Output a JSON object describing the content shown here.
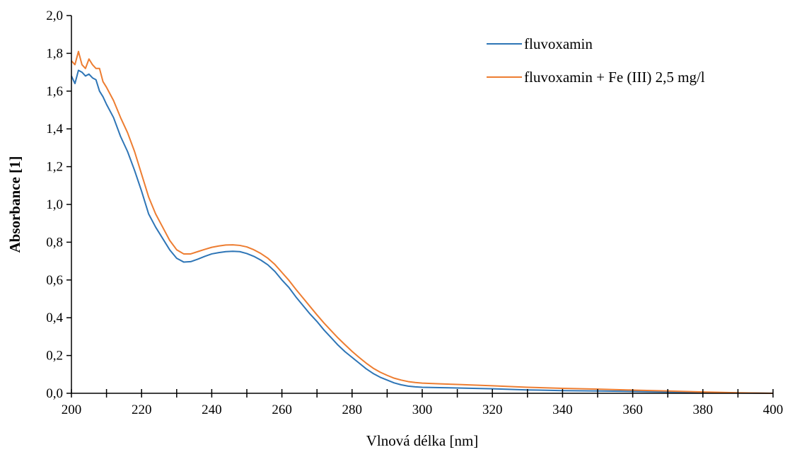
{
  "chart_data": {
    "type": "line",
    "title": "",
    "xlabel": "Vlnová délka [nm]",
    "ylabel": "Absorbance [1]",
    "xlim": [
      200,
      400
    ],
    "ylim": [
      0,
      2.0
    ],
    "x_ticks": [
      200,
      220,
      240,
      260,
      280,
      300,
      320,
      340,
      360,
      380,
      400
    ],
    "x_tick_labels": [
      "200",
      "220",
      "240",
      "260",
      "280",
      "300",
      "320",
      "340",
      "360",
      "380",
      "400"
    ],
    "y_ticks": [
      0,
      0.2,
      0.4,
      0.6,
      0.8,
      1.0,
      1.2,
      1.4,
      1.6,
      1.8,
      2.0
    ],
    "y_tick_labels": [
      "0,0",
      "0,2",
      "0,4",
      "0,6",
      "0,8",
      "1,0",
      "1,2",
      "1,4",
      "1,6",
      "1,8",
      "2,0"
    ],
    "x_minor_step": 10,
    "grid": false,
    "legend_position": "top-right",
    "series": [
      {
        "name": "fluvoxamin",
        "color": "#2E75B6",
        "points": [
          [
            200,
            1.68
          ],
          [
            201,
            1.64
          ],
          [
            202,
            1.71
          ],
          [
            203,
            1.7
          ],
          [
            204,
            1.68
          ],
          [
            205,
            1.69
          ],
          [
            206,
            1.67
          ],
          [
            207,
            1.66
          ],
          [
            208,
            1.6
          ],
          [
            209,
            1.57
          ],
          [
            210,
            1.53
          ],
          [
            212,
            1.46
          ],
          [
            214,
            1.36
          ],
          [
            216,
            1.28
          ],
          [
            218,
            1.18
          ],
          [
            220,
            1.07
          ],
          [
            222,
            0.95
          ],
          [
            224,
            0.88
          ],
          [
            226,
            0.82
          ],
          [
            228,
            0.76
          ],
          [
            230,
            0.715
          ],
          [
            232,
            0.695
          ],
          [
            234,
            0.697
          ],
          [
            236,
            0.71
          ],
          [
            238,
            0.725
          ],
          [
            240,
            0.738
          ],
          [
            242,
            0.745
          ],
          [
            244,
            0.75
          ],
          [
            246,
            0.752
          ],
          [
            248,
            0.75
          ],
          [
            250,
            0.74
          ],
          [
            252,
            0.725
          ],
          [
            254,
            0.705
          ],
          [
            256,
            0.68
          ],
          [
            258,
            0.645
          ],
          [
            260,
            0.6
          ],
          [
            262,
            0.56
          ],
          [
            264,
            0.51
          ],
          [
            266,
            0.465
          ],
          [
            268,
            0.42
          ],
          [
            270,
            0.38
          ],
          [
            272,
            0.335
          ],
          [
            274,
            0.295
          ],
          [
            276,
            0.255
          ],
          [
            278,
            0.22
          ],
          [
            280,
            0.19
          ],
          [
            282,
            0.16
          ],
          [
            284,
            0.13
          ],
          [
            286,
            0.105
          ],
          [
            288,
            0.085
          ],
          [
            290,
            0.07
          ],
          [
            292,
            0.055
          ],
          [
            294,
            0.045
          ],
          [
            296,
            0.038
          ],
          [
            298,
            0.034
          ],
          [
            300,
            0.032
          ],
          [
            305,
            0.03
          ],
          [
            310,
            0.028
          ],
          [
            320,
            0.024
          ],
          [
            330,
            0.018
          ],
          [
            340,
            0.014
          ],
          [
            350,
            0.012
          ],
          [
            360,
            0.01
          ],
          [
            370,
            0.007
          ],
          [
            380,
            0.004
          ],
          [
            390,
            0.002
          ],
          [
            400,
            0.0
          ]
        ]
      },
      {
        "name": "fluvoxamin + Fe (III) 2,5 mg/l",
        "color": "#ED7D31",
        "points": [
          [
            200,
            1.76
          ],
          [
            201,
            1.74
          ],
          [
            202,
            1.81
          ],
          [
            203,
            1.74
          ],
          [
            204,
            1.72
          ],
          [
            205,
            1.77
          ],
          [
            206,
            1.74
          ],
          [
            207,
            1.72
          ],
          [
            208,
            1.72
          ],
          [
            209,
            1.65
          ],
          [
            210,
            1.62
          ],
          [
            212,
            1.55
          ],
          [
            214,
            1.46
          ],
          [
            216,
            1.38
          ],
          [
            218,
            1.28
          ],
          [
            220,
            1.16
          ],
          [
            222,
            1.04
          ],
          [
            224,
            0.95
          ],
          [
            226,
            0.88
          ],
          [
            228,
            0.81
          ],
          [
            230,
            0.76
          ],
          [
            232,
            0.738
          ],
          [
            234,
            0.738
          ],
          [
            236,
            0.75
          ],
          [
            238,
            0.762
          ],
          [
            240,
            0.773
          ],
          [
            242,
            0.78
          ],
          [
            244,
            0.785
          ],
          [
            246,
            0.786
          ],
          [
            248,
            0.783
          ],
          [
            250,
            0.775
          ],
          [
            252,
            0.76
          ],
          [
            254,
            0.74
          ],
          [
            256,
            0.715
          ],
          [
            258,
            0.682
          ],
          [
            260,
            0.64
          ],
          [
            262,
            0.598
          ],
          [
            264,
            0.55
          ],
          [
            266,
            0.505
          ],
          [
            268,
            0.46
          ],
          [
            270,
            0.415
          ],
          [
            272,
            0.372
          ],
          [
            274,
            0.332
          ],
          [
            276,
            0.293
          ],
          [
            278,
            0.257
          ],
          [
            280,
            0.222
          ],
          [
            282,
            0.19
          ],
          [
            284,
            0.16
          ],
          [
            286,
            0.133
          ],
          [
            288,
            0.112
          ],
          [
            290,
            0.095
          ],
          [
            292,
            0.08
          ],
          [
            294,
            0.07
          ],
          [
            296,
            0.062
          ],
          [
            298,
            0.057
          ],
          [
            300,
            0.054
          ],
          [
            305,
            0.05
          ],
          [
            310,
            0.047
          ],
          [
            320,
            0.04
          ],
          [
            330,
            0.032
          ],
          [
            340,
            0.026
          ],
          [
            350,
            0.022
          ],
          [
            360,
            0.017
          ],
          [
            370,
            0.012
          ],
          [
            380,
            0.007
          ],
          [
            390,
            0.003
          ],
          [
            400,
            0.0
          ]
        ]
      }
    ]
  }
}
